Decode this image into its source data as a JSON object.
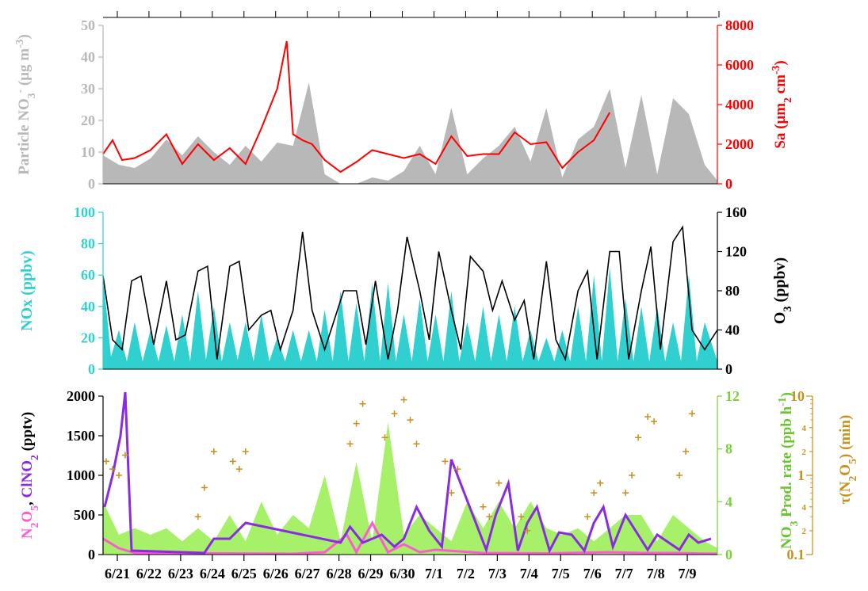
{
  "colors": {
    "gray": "#b8b8b8",
    "red": "#ff0000",
    "cyan": "#30d0d0",
    "black": "#000000",
    "purple": "#8a2be2",
    "pink": "#ff5ad2",
    "green": "#a6f06a",
    "gold": "#c8901e"
  },
  "x_axis": {
    "tick_labels": [
      "6/21",
      "6/22",
      "6/23",
      "6/24",
      "6/25",
      "6/26",
      "6/27",
      "6/28",
      "6/29",
      "6/30",
      "7/1",
      "7/2",
      "7/3",
      "7/4",
      "7/5",
      "7/6",
      "7/7",
      "7/8",
      "7/9"
    ],
    "range_days": [
      0,
      19.4
    ]
  },
  "panels": {
    "top": {
      "left_label_parts": [
        "Particle NO",
        "3",
        "-",
        " (μg m",
        "-3",
        ")"
      ],
      "right_label_parts": [
        "S",
        "a",
        " (μm",
        "2",
        " cm",
        "-3",
        ")"
      ],
      "left_ticks": [
        "0",
        "10",
        "20",
        "30",
        "40",
        "50"
      ],
      "right_ticks": [
        "0",
        "2000",
        "4000",
        "6000",
        "8000"
      ]
    },
    "middle": {
      "left_label_parts": [
        "NO",
        "x",
        " (ppbv)"
      ],
      "right_label_parts": [
        "O",
        "3",
        " (ppbv)"
      ],
      "left_ticks": [
        "0",
        "20",
        "40",
        "60",
        "80",
        "100"
      ],
      "right_ticks": [
        "0",
        "40",
        "80",
        "120",
        "160"
      ]
    },
    "bottom": {
      "left_label_parts": [
        "N",
        "2",
        "O",
        "5",
        ", ",
        "ClNO",
        "2",
        " (pptv)"
      ],
      "right_label_parts": [
        "NO",
        "3",
        " Prod. rate (ppb h",
        "-1",
        ")"
      ],
      "far_right_label_parts": [
        "τ(N",
        "2",
        "O",
        "5",
        ") (min)"
      ],
      "left_ticks": [
        "0",
        "500",
        "1000",
        "1500",
        "2000"
      ],
      "right_ticks": [
        "0",
        "4",
        "8",
        "12"
      ],
      "far_right_major_ticks": [
        "0.1",
        "1",
        "10"
      ],
      "far_right_minor_ticks": [
        "2",
        "4",
        "2",
        "4",
        "2",
        "4"
      ]
    }
  },
  "chart_data": [
    {
      "type": "area",
      "title": "",
      "xlabel": "",
      "ylabel": "Particle NO3- (μg m-3)",
      "y2label": "Sa (μm2 cm-3)",
      "ylim": [
        0,
        50
      ],
      "y2lim": [
        0,
        8000
      ],
      "series": [
        {
          "name": "Particle NO3-",
          "style": "filled area, left axis",
          "x": [
            0.0,
            0.5,
            1.0,
            1.5,
            2.0,
            2.5,
            3.0,
            3.5,
            4.0,
            4.5,
            5.0,
            5.5,
            6.0,
            6.5,
            7.0,
            7.5,
            8.0,
            8.5,
            9.0,
            9.5,
            10.0,
            10.5,
            11.0,
            11.5,
            12.0,
            12.5,
            13.0,
            13.5,
            14.0,
            14.5,
            15.0,
            15.5,
            16.0,
            16.5,
            17.0,
            17.5,
            18.0,
            18.5,
            19.0,
            19.4
          ],
          "y": [
            9,
            6,
            5,
            8,
            14,
            9,
            15,
            10,
            6,
            12,
            7,
            13,
            12,
            32,
            3,
            0,
            0,
            2,
            1,
            4,
            12,
            3,
            24,
            3,
            8,
            12,
            18,
            7,
            24,
            2,
            14,
            18,
            30,
            5,
            28,
            3,
            27,
            22,
            6,
            1
          ]
        },
        {
          "name": "Sa",
          "style": "red line, right axis",
          "x": [
            0.0,
            0.3,
            0.6,
            1.0,
            1.5,
            2.0,
            2.5,
            3.0,
            3.5,
            4.0,
            4.5,
            5.0,
            5.5,
            5.8,
            6.0,
            6.3,
            6.6,
            7.0,
            7.5,
            8.0,
            8.5,
            9.0,
            9.5,
            10.0,
            10.5,
            11.0,
            11.5,
            12.0,
            12.5,
            13.0,
            13.5,
            14.0,
            14.5,
            15.0,
            15.5,
            16.0
          ],
          "y": [
            1500,
            2200,
            1200,
            1300,
            1700,
            2500,
            1000,
            2000,
            1200,
            1800,
            1000,
            2800,
            4800,
            7200,
            2500,
            2200,
            2000,
            1200,
            600,
            1100,
            1700,
            1500,
            1300,
            1500,
            1000,
            2400,
            1400,
            1500,
            1500,
            2600,
            2000,
            2100,
            800,
            1600,
            2200,
            3600
          ]
        }
      ]
    },
    {
      "type": "line",
      "title": "",
      "xlabel": "",
      "ylabel": "NOx (ppbv)",
      "y2label": "O3 (ppbv)",
      "ylim": [
        0,
        100
      ],
      "y2lim": [
        0,
        160
      ],
      "series": [
        {
          "name": "NOx",
          "style": "filled area, left axis",
          "x": [
            0.0,
            0.25,
            0.5,
            0.75,
            1.0,
            1.25,
            1.5,
            1.75,
            2.0,
            2.25,
            2.5,
            2.75,
            3.0,
            3.25,
            3.5,
            3.75,
            4.0,
            4.25,
            4.5,
            4.75,
            5.0,
            5.25,
            5.5,
            5.75,
            6.0,
            6.25,
            6.5,
            6.75,
            7.0,
            7.25,
            7.5,
            7.75,
            8.0,
            8.25,
            8.5,
            8.75,
            9.0,
            9.25,
            9.5,
            9.75,
            10.0,
            10.25,
            10.5,
            10.75,
            11.0,
            11.25,
            11.5,
            11.75,
            12.0,
            12.25,
            12.5,
            12.75,
            13.0,
            13.25,
            13.5,
            13.75,
            14.0,
            14.25,
            14.5,
            14.75,
            15.0,
            15.25,
            15.5,
            15.75,
            16.0,
            16.25,
            16.5,
            16.75,
            17.0,
            17.25,
            17.5,
            17.75,
            18.0,
            18.25,
            18.5,
            18.75,
            19.0,
            19.4
          ],
          "y": [
            60,
            8,
            25,
            5,
            30,
            5,
            25,
            5,
            28,
            5,
            35,
            5,
            50,
            6,
            40,
            5,
            30,
            6,
            30,
            5,
            35,
            5,
            20,
            5,
            25,
            5,
            25,
            5,
            38,
            5,
            50,
            5,
            42,
            5,
            55,
            5,
            55,
            5,
            35,
            5,
            45,
            5,
            35,
            5,
            50,
            5,
            30,
            5,
            40,
            5,
            35,
            5,
            40,
            5,
            25,
            5,
            20,
            5,
            25,
            5,
            40,
            5,
            60,
            5,
            65,
            5,
            45,
            5,
            40,
            5,
            40,
            5,
            30,
            5,
            60,
            5,
            30,
            5
          ]
        },
        {
          "name": "O3",
          "style": "black line, right axis",
          "x": [
            0.0,
            0.3,
            0.6,
            0.9,
            1.2,
            1.6,
            2.0,
            2.3,
            2.6,
            3.0,
            3.3,
            3.6,
            4.0,
            4.3,
            4.6,
            5.0,
            5.3,
            5.6,
            6.0,
            6.3,
            6.6,
            7.0,
            7.3,
            7.6,
            8.0,
            8.3,
            8.6,
            9.0,
            9.3,
            9.6,
            10.0,
            10.3,
            10.6,
            11.0,
            11.3,
            11.6,
            12.0,
            12.3,
            12.6,
            13.0,
            13.3,
            13.6,
            14.0,
            14.3,
            14.6,
            15.0,
            15.3,
            15.6,
            16.0,
            16.3,
            16.6,
            17.0,
            17.3,
            17.6,
            18.0,
            18.3,
            18.6,
            19.0,
            19.4
          ],
          "y": [
            95,
            30,
            20,
            90,
            95,
            25,
            90,
            30,
            35,
            100,
            105,
            10,
            105,
            110,
            40,
            55,
            60,
            20,
            60,
            140,
            60,
            20,
            50,
            80,
            80,
            25,
            90,
            10,
            60,
            135,
            80,
            30,
            120,
            60,
            20,
            115,
            100,
            60,
            90,
            50,
            70,
            10,
            110,
            30,
            10,
            80,
            100,
            10,
            120,
            120,
            10,
            80,
            125,
            20,
            130,
            145,
            40,
            20,
            40
          ]
        }
      ]
    },
    {
      "type": "scatter",
      "title": "",
      "xlabel": "",
      "ylabel": "N2O5, ClNO2 (pptv)",
      "y2label": "NO3 Prod. rate (ppb h-1)",
      "y3label": "τ(N2O5) (min)",
      "ylim": [
        0,
        2000
      ],
      "y2lim": [
        0,
        12
      ],
      "y3lim": [
        0.1,
        10
      ],
      "y3_scale": "log",
      "series": [
        {
          "name": "NO3 Prod. rate",
          "style": "green filled area, right axis",
          "x": [
            0.0,
            0.5,
            1.0,
            1.5,
            2.0,
            2.5,
            3.0,
            3.5,
            4.0,
            4.5,
            5.0,
            5.5,
            6.0,
            6.5,
            7.0,
            7.5,
            8.0,
            8.5,
            9.0,
            9.5,
            10.0,
            10.5,
            11.0,
            11.5,
            12.0,
            12.5,
            13.0,
            13.5,
            14.0,
            14.5,
            15.0,
            15.5,
            16.0,
            16.5,
            17.0,
            17.5,
            18.0,
            18.5,
            19.0,
            19.4
          ],
          "y": [
            4,
            1.5,
            2,
            1.5,
            2,
            1,
            2,
            1,
            3,
            1,
            4,
            1.5,
            3,
            2,
            6,
            1,
            7,
            1,
            10,
            1.5,
            3,
            2,
            1,
            4,
            2,
            4,
            2,
            4,
            2,
            1.5,
            2,
            1,
            2,
            3,
            3,
            1,
            3,
            2,
            1,
            0.5
          ]
        },
        {
          "name": "N2O5",
          "style": "pink line, left axis",
          "x": [
            0.0,
            0.5,
            1.0,
            6.0,
            7.0,
            7.7,
            8.0,
            8.5,
            9.0,
            9.5,
            10.0,
            10.5,
            12.0,
            14.0,
            16.0,
            17.0,
            18.0,
            19.4
          ],
          "y": [
            200,
            80,
            20,
            10,
            30,
            250,
            30,
            400,
            30,
            130,
            30,
            60,
            20,
            15,
            30,
            20,
            20,
            10
          ]
        },
        {
          "name": "ClNO2",
          "style": "purple line, left axis",
          "x": [
            0.05,
            0.3,
            0.55,
            0.7,
            0.9,
            3.2,
            3.5,
            4.0,
            4.5,
            7.5,
            7.8,
            8.2,
            8.8,
            9.2,
            9.5,
            9.9,
            10.3,
            10.7,
            11.0,
            12.1,
            12.4,
            12.8,
            13.1,
            13.4,
            13.7,
            14.1,
            14.4,
            14.8,
            15.2,
            15.5,
            15.8,
            16.1,
            16.5,
            17.2,
            17.5,
            18.2,
            18.5,
            18.8,
            19.2
          ],
          "y": [
            600,
            1000,
            1500,
            2050,
            50,
            20,
            200,
            200,
            400,
            150,
            350,
            150,
            250,
            100,
            200,
            600,
            300,
            100,
            1200,
            60,
            500,
            900,
            50,
            400,
            600,
            50,
            280,
            250,
            50,
            400,
            600,
            100,
            500,
            60,
            250,
            60,
            250,
            150,
            200
          ]
        },
        {
          "name": "τ(N2O5)",
          "style": "gold cross markers, far-right log axis",
          "x": [
            0.1,
            0.3,
            0.5,
            0.7,
            3.0,
            3.2,
            3.5,
            4.1,
            4.3,
            4.5,
            7.8,
            8.0,
            8.2,
            8.9,
            9.2,
            9.5,
            9.7,
            9.9,
            10.8,
            11.0,
            11.2,
            12.0,
            12.2,
            12.5,
            13.2,
            13.4,
            15.3,
            15.5,
            15.7,
            16.5,
            16.7,
            16.9,
            17.2,
            17.4,
            18.2,
            18.4,
            18.6
          ],
          "y": [
            1.5,
            1.2,
            1.0,
            1.8,
            0.3,
            0.7,
            2.0,
            1.5,
            1.2,
            2.0,
            2.5,
            4.5,
            8.0,
            3.0,
            6.0,
            9.0,
            5.0,
            2.5,
            1.5,
            0.6,
            1.2,
            0.4,
            0.3,
            0.8,
            0.3,
            0.2,
            0.3,
            0.6,
            0.8,
            0.6,
            1.0,
            3.0,
            5.5,
            4.8,
            1.0,
            2.0,
            6.0
          ]
        }
      ]
    }
  ]
}
